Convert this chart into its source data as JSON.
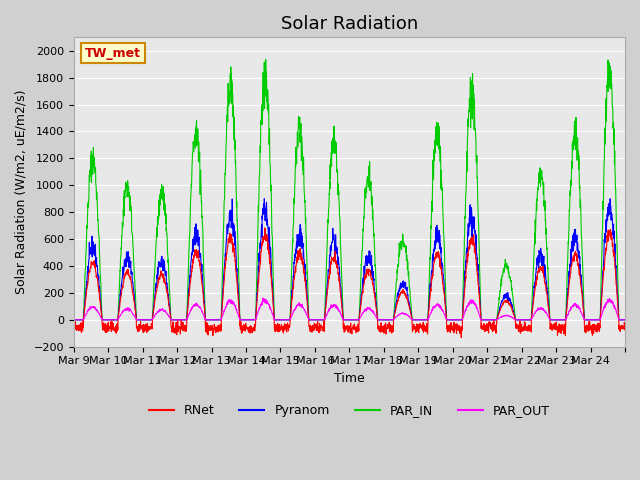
{
  "title": "Solar Radiation",
  "ylabel": "Solar Radiation (W/m2, uE/m2/s)",
  "xlabel": "Time",
  "ylim": [
    -200,
    2100
  ],
  "yticks": [
    -200,
    0,
    200,
    400,
    600,
    800,
    1000,
    1200,
    1400,
    1600,
    1800,
    2000
  ],
  "x_labels": [
    "Mar 9",
    "Mar 10",
    "Mar 11",
    "Mar 12",
    "Mar 13",
    "Mar 14",
    "Mar 15",
    "Mar 16",
    "Mar 17",
    "Mar 18",
    "Mar 19",
    "Mar 20",
    "Mar 21",
    "Mar 22",
    "Mar 23",
    "Mar 24",
    ""
  ],
  "xtick_positions": [
    0,
    1,
    2,
    3,
    4,
    5,
    6,
    7,
    8,
    9,
    10,
    11,
    12,
    13,
    14,
    15,
    16
  ],
  "n_days": 16,
  "colors": {
    "RNet": "#ff0000",
    "Pyranom": "#0000ff",
    "PAR_IN": "#00cc00",
    "PAR_OUT": "#ff00ff"
  },
  "legend_label_box": "TW_met",
  "legend_box_facecolor": "#ffffcc",
  "legend_box_edgecolor": "#cc8800",
  "legend_box_textcolor": "#cc0000",
  "plot_bg_color": "#e8e8e8",
  "fig_bg_color": "#d0d0d0",
  "grid_color": "#ffffff",
  "title_fontsize": 13,
  "label_fontsize": 9,
  "tick_fontsize": 8,
  "par_in_peaks": [
    1200,
    1000,
    950,
    1420,
    1750,
    1800,
    1420,
    1320,
    1050,
    600,
    1390,
    1730,
    400,
    1090,
    1380,
    1850
  ]
}
